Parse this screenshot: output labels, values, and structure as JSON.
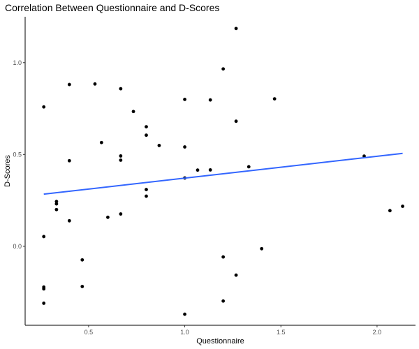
{
  "chart_data": {
    "type": "scatter",
    "title": "Correlation Between Questionnaire and D-Scores",
    "xlabel": "Questionnaire",
    "ylabel": "D-Scores",
    "xlim": [
      0.17,
      2.2
    ],
    "ylim": [
      -0.43,
      1.25
    ],
    "xticks": [
      0.5,
      1.0,
      1.5,
      2.0
    ],
    "xtick_labels": [
      "0.5",
      "1.0",
      "1.5",
      "2.0"
    ],
    "yticks": [
      0.0,
      0.5,
      1.0
    ],
    "ytick_labels": [
      "0.0",
      "0.5",
      "1.0"
    ],
    "grid": false,
    "colors": {
      "points": "#000000",
      "fit_line": "#3366ff",
      "axis": "#000000",
      "tick_text": "#4d4d4d"
    },
    "points": [
      {
        "x": 1.267,
        "y": 1.186
      },
      {
        "x": 1.2,
        "y": 0.966
      },
      {
        "x": 0.4,
        "y": 0.881
      },
      {
        "x": 0.533,
        "y": 0.884
      },
      {
        "x": 0.667,
        "y": 0.858
      },
      {
        "x": 1.0,
        "y": 0.8
      },
      {
        "x": 1.133,
        "y": 0.797
      },
      {
        "x": 1.467,
        "y": 0.803
      },
      {
        "x": 0.267,
        "y": 0.759
      },
      {
        "x": 0.733,
        "y": 0.734
      },
      {
        "x": 1.267,
        "y": 0.681
      },
      {
        "x": 0.8,
        "y": 0.651
      },
      {
        "x": 0.8,
        "y": 0.605
      },
      {
        "x": 0.567,
        "y": 0.565
      },
      {
        "x": 0.867,
        "y": 0.549
      },
      {
        "x": 1.0,
        "y": 0.541
      },
      {
        "x": 0.667,
        "y": 0.492
      },
      {
        "x": 0.667,
        "y": 0.469
      },
      {
        "x": 0.4,
        "y": 0.466
      },
      {
        "x": 1.933,
        "y": 0.491
      },
      {
        "x": 1.333,
        "y": 0.433
      },
      {
        "x": 1.067,
        "y": 0.415
      },
      {
        "x": 1.133,
        "y": 0.416
      },
      {
        "x": 1.0,
        "y": 0.372
      },
      {
        "x": 0.8,
        "y": 0.309
      },
      {
        "x": 0.8,
        "y": 0.273
      },
      {
        "x": 0.333,
        "y": 0.244
      },
      {
        "x": 0.333,
        "y": 0.231
      },
      {
        "x": 0.333,
        "y": 0.2
      },
      {
        "x": 2.133,
        "y": 0.218
      },
      {
        "x": 2.067,
        "y": 0.194
      },
      {
        "x": 0.667,
        "y": 0.176
      },
      {
        "x": 0.6,
        "y": 0.158
      },
      {
        "x": 0.4,
        "y": 0.139
      },
      {
        "x": 0.267,
        "y": 0.053
      },
      {
        "x": 1.4,
        "y": -0.013
      },
      {
        "x": 1.2,
        "y": -0.058
      },
      {
        "x": 0.467,
        "y": -0.074
      },
      {
        "x": 1.267,
        "y": -0.157
      },
      {
        "x": 0.467,
        "y": -0.219
      },
      {
        "x": 0.267,
        "y": -0.222
      },
      {
        "x": 0.267,
        "y": -0.232
      },
      {
        "x": 1.2,
        "y": -0.298
      },
      {
        "x": 0.267,
        "y": -0.31
      },
      {
        "x": 1.0,
        "y": -0.37
      }
    ],
    "fit_line": {
      "x": [
        0.267,
        2.133
      ],
      "y": [
        0.284,
        0.506
      ]
    }
  }
}
